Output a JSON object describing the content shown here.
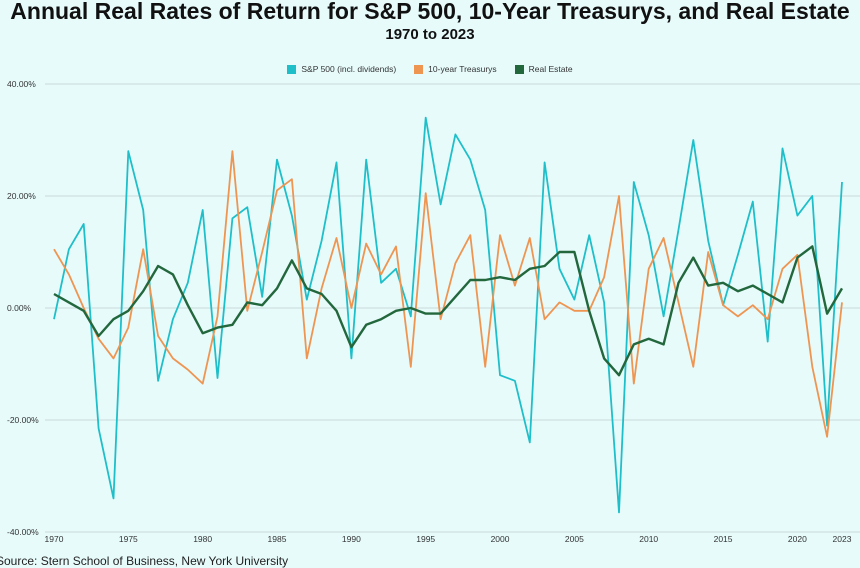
{
  "chart_data": {
    "type": "line",
    "title": "Annual Real Rates of Return for S&P 500, 10-Year Treasurys, and Real Estate",
    "subtitle": "1970 to 2023",
    "source": "Source: Stern School of Business, New York University",
    "x": [
      1970,
      1971,
      1972,
      1973,
      1974,
      1975,
      1976,
      1977,
      1978,
      1979,
      1980,
      1981,
      1982,
      1983,
      1984,
      1985,
      1986,
      1987,
      1988,
      1989,
      1990,
      1991,
      1992,
      1993,
      1994,
      1995,
      1996,
      1997,
      1998,
      1999,
      2000,
      2001,
      2002,
      2003,
      2004,
      2005,
      2006,
      2007,
      2008,
      2009,
      2010,
      2011,
      2012,
      2013,
      2014,
      2015,
      2016,
      2017,
      2018,
      2019,
      2020,
      2021,
      2022,
      2023
    ],
    "x_ticks": [
      1970,
      1975,
      1980,
      1985,
      1990,
      1995,
      2000,
      2005,
      2010,
      2015,
      2020,
      2023
    ],
    "y_ticks": [
      40,
      20,
      0,
      -20,
      -40
    ],
    "y_tick_labels": [
      "40.00%",
      "20.00%",
      "0.00%",
      "-20.00%",
      "-40.00%"
    ],
    "ylim": [
      -40,
      40
    ],
    "grid": "horizontal",
    "legend_position": "top-center",
    "series": [
      {
        "name": "S&P 500 (incl. dividends)",
        "color": "#1fbfc9",
        "values": [
          -2,
          10.5,
          15,
          -21.5,
          -34,
          28,
          17.5,
          -13,
          -2,
          4.5,
          17.5,
          -12.5,
          16,
          18,
          2,
          26.5,
          16.5,
          1.5,
          12,
          26,
          -9,
          26.5,
          4.5,
          7,
          -1.5,
          34,
          18.5,
          31,
          26.5,
          17.5,
          -12,
          -13,
          -24,
          26,
          7,
          1.5,
          13,
          1,
          -36.5,
          22.5,
          13,
          -1.5,
          14,
          30,
          12,
          0.5,
          9.5,
          19,
          -6,
          28.5,
          16.5,
          20,
          -21,
          22.5
        ]
      },
      {
        "name": "10-year Treasurys",
        "color": "#ef9552",
        "values": [
          10.5,
          6,
          0,
          -5.5,
          -9,
          -3.5,
          10.5,
          -5,
          -9,
          -11,
          -13.5,
          -1.5,
          28,
          -0.5,
          10,
          21,
          23,
          -9,
          3.5,
          12.5,
          0,
          11.5,
          6,
          11,
          -10.5,
          20.5,
          -2,
          8,
          13,
          -10.5,
          13,
          4,
          12.5,
          -2,
          1,
          -0.5,
          -0.5,
          5.5,
          20,
          -13.5,
          7,
          12.5,
          1,
          -10.5,
          10,
          0.5,
          -1.5,
          0.5,
          -2,
          7,
          9.5,
          -10.5,
          -23,
          1
        ]
      },
      {
        "name": "Real Estate",
        "color": "#23673d",
        "values": [
          2.5,
          1,
          -0.5,
          -5,
          -2,
          -0.5,
          3,
          7.5,
          6,
          0.5,
          -4.5,
          -3.5,
          -3,
          1,
          0.5,
          3.5,
          8.5,
          3.5,
          2.5,
          -0.5,
          -7,
          -3,
          -2,
          -0.5,
          0,
          -1,
          -1,
          2,
          5,
          5,
          5.5,
          5,
          7,
          7.5,
          10,
          10,
          -0.5,
          -9,
          -12,
          -6.5,
          -5.5,
          -6.5,
          4.5,
          9,
          4,
          4.5,
          3,
          4,
          2.5,
          1,
          9,
          11,
          -1,
          3.5
        ]
      }
    ]
  }
}
